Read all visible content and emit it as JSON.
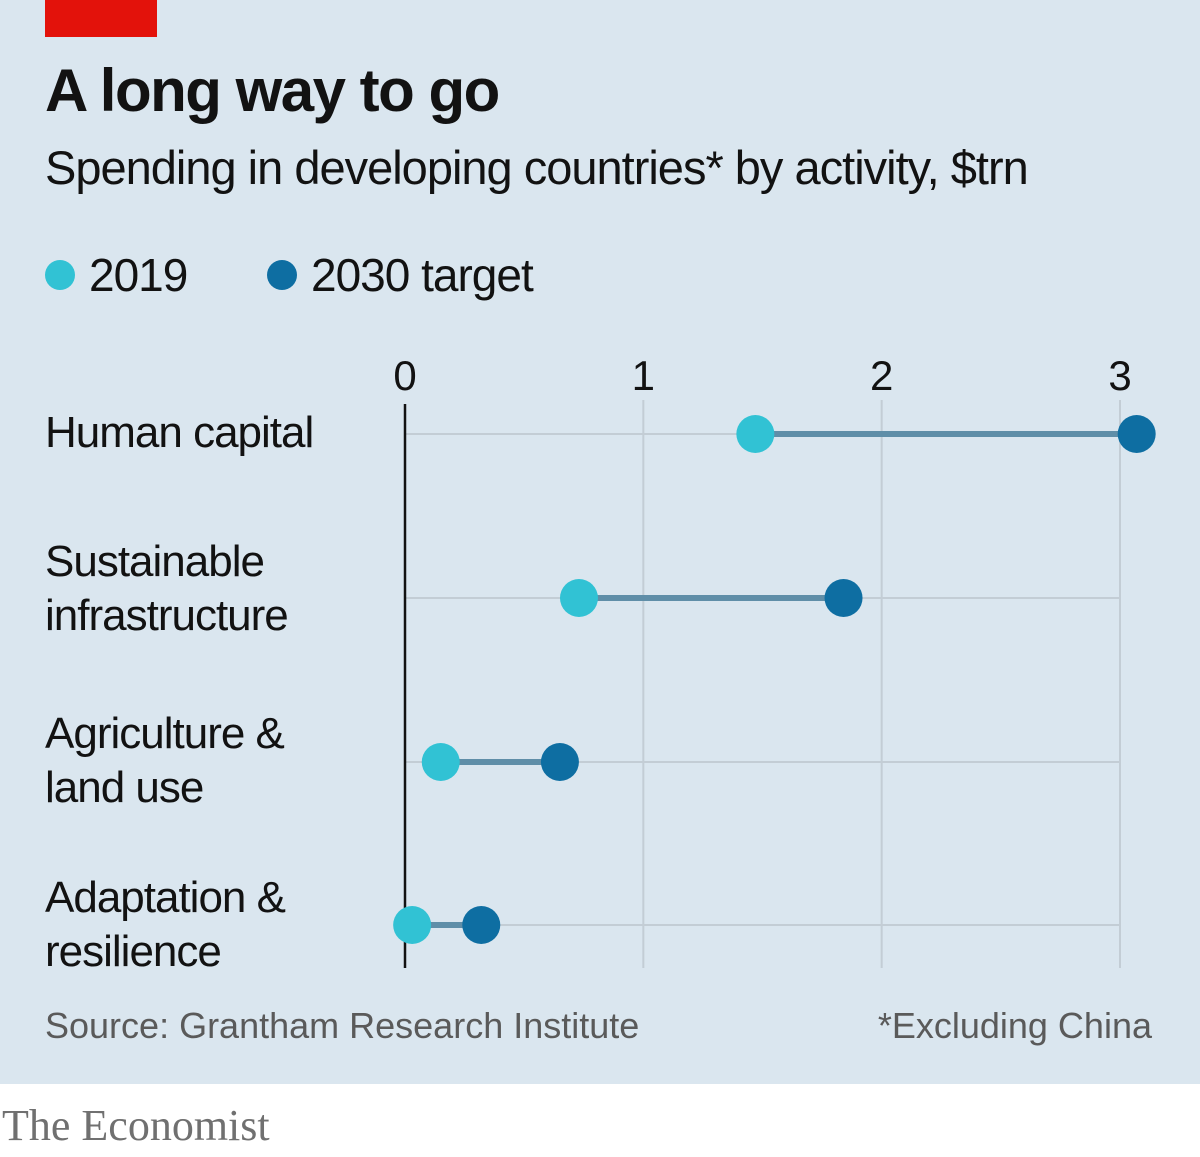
{
  "title": "A long way to go",
  "subtitle": "Spending in developing countries* by activity, $trn",
  "colors": {
    "accent": "#e3120b",
    "background": "#dae6ef",
    "series_2019": "#31c2d4",
    "series_2030": "#0e6ea2",
    "connector": "#5f8ea8",
    "grid": "#c3cdd5",
    "axis": "#121212"
  },
  "source": "Source: Grantham Research Institute",
  "footnote": "*Excluding China",
  "brand": "The Economist",
  "chart_data": {
    "type": "dumbbell",
    "title": "A long way to go",
    "subtitle": "Spending in developing countries* by activity, $trn",
    "categories": [
      [
        "Human capital"
      ],
      [
        "Sustainable",
        "infrastructure"
      ],
      [
        "Agriculture &",
        "land use"
      ],
      [
        "Adaptation &",
        "resilience"
      ]
    ],
    "series": [
      {
        "name": "2019",
        "values": [
          1.47,
          0.73,
          0.15,
          0.03
        ]
      },
      {
        "name": "2030 target",
        "values": [
          3.07,
          1.84,
          0.65,
          0.32
        ]
      }
    ],
    "xlim": [
      0,
      3
    ],
    "xticks": [
      "0",
      "1",
      "2",
      "3"
    ],
    "grid": true,
    "legend_position": "top-left",
    "xlabel": "",
    "ylabel": ""
  }
}
